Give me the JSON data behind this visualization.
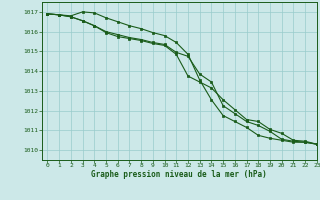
{
  "title": "Graphe pression niveau de la mer (hPa)",
  "background_color": "#cce8e8",
  "grid_color": "#99cccc",
  "line_color": "#1a5c1a",
  "xlim": [
    -0.5,
    23
  ],
  "ylim": [
    1009.5,
    1017.5
  ],
  "yticks": [
    1010,
    1011,
    1012,
    1013,
    1014,
    1015,
    1016,
    1017
  ],
  "xticks": [
    0,
    1,
    2,
    3,
    4,
    5,
    6,
    7,
    8,
    9,
    10,
    11,
    12,
    13,
    14,
    15,
    16,
    17,
    18,
    19,
    20,
    21,
    22,
    23
  ],
  "series1": [
    1016.9,
    1016.85,
    1016.8,
    1017.0,
    1016.95,
    1016.7,
    1016.5,
    1016.3,
    1016.15,
    1015.95,
    1015.8,
    1015.45,
    1014.85,
    1013.55,
    1012.55,
    1011.75,
    1011.45,
    1011.15,
    1010.75,
    1010.6,
    1010.5,
    1010.4,
    1010.4,
    1010.3
  ],
  "series2": [
    1016.9,
    1016.85,
    1016.75,
    1016.55,
    1016.3,
    1015.95,
    1015.75,
    1015.65,
    1015.55,
    1015.4,
    1015.3,
    1014.85,
    1013.75,
    1013.45,
    1013.15,
    1012.55,
    1012.05,
    1011.55,
    1011.45,
    1011.05,
    1010.85,
    1010.5,
    1010.45,
    1010.3
  ],
  "series3": [
    1016.9,
    1016.85,
    1016.75,
    1016.55,
    1016.3,
    1016.0,
    1015.85,
    1015.7,
    1015.6,
    1015.45,
    1015.35,
    1014.95,
    1014.75,
    1013.85,
    1013.45,
    1012.25,
    1011.85,
    1011.45,
    1011.25,
    1010.95,
    1010.55,
    1010.45,
    1010.4,
    1010.3
  ]
}
